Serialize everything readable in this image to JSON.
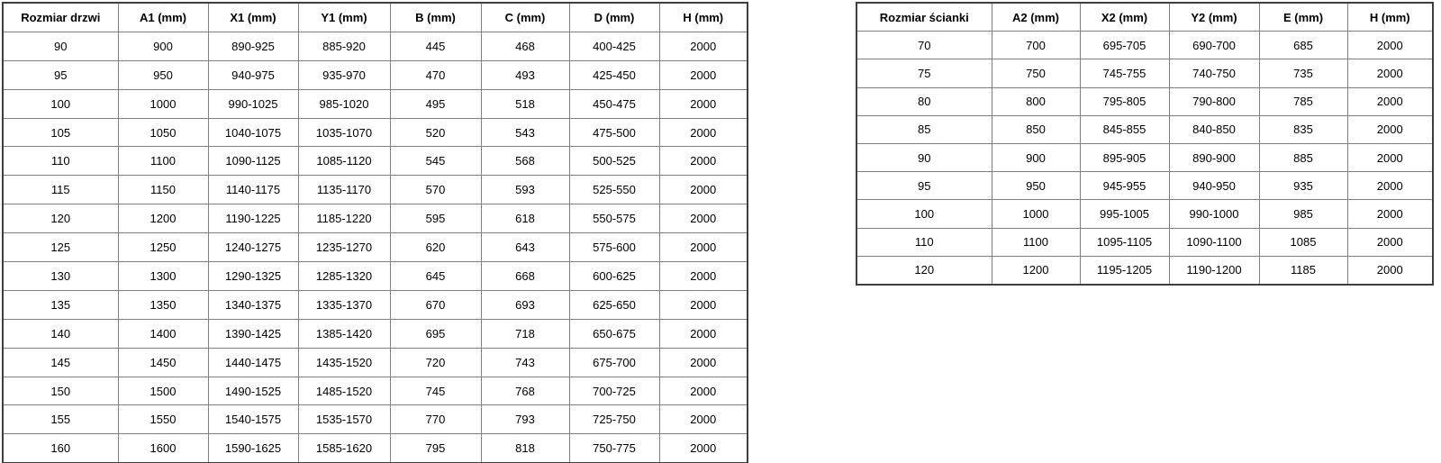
{
  "page": {
    "background_color": "#ffffff",
    "text_color": "#000000",
    "outer_border_color": "#3f3f3f",
    "inner_border_color": "#7f7f7f"
  },
  "tables": [
    {
      "id": "doors",
      "semantic": "door-sizes-table",
      "headers": [
        "Rozmiar drzwi",
        "A1 (mm)",
        "X1 (mm)",
        "Y1 (mm)",
        "B (mm)",
        "C (mm)",
        "D (mm)",
        "H (mm)"
      ],
      "rows": [
        [
          "90",
          "900",
          "890-925",
          "885-920",
          "445",
          "468",
          "400-425",
          "2000"
        ],
        [
          "95",
          "950",
          "940-975",
          "935-970",
          "470",
          "493",
          "425-450",
          "2000"
        ],
        [
          "100",
          "1000",
          "990-1025",
          "985-1020",
          "495",
          "518",
          "450-475",
          "2000"
        ],
        [
          "105",
          "1050",
          "1040-1075",
          "1035-1070",
          "520",
          "543",
          "475-500",
          "2000"
        ],
        [
          "110",
          "1100",
          "1090-1125",
          "1085-1120",
          "545",
          "568",
          "500-525",
          "2000"
        ],
        [
          "115",
          "1150",
          "1140-1175",
          "1135-1170",
          "570",
          "593",
          "525-550",
          "2000"
        ],
        [
          "120",
          "1200",
          "1190-1225",
          "1185-1220",
          "595",
          "618",
          "550-575",
          "2000"
        ],
        [
          "125",
          "1250",
          "1240-1275",
          "1235-1270",
          "620",
          "643",
          "575-600",
          "2000"
        ],
        [
          "130",
          "1300",
          "1290-1325",
          "1285-1320",
          "645",
          "668",
          "600-625",
          "2000"
        ],
        [
          "135",
          "1350",
          "1340-1375",
          "1335-1370",
          "670",
          "693",
          "625-650",
          "2000"
        ],
        [
          "140",
          "1400",
          "1390-1425",
          "1385-1420",
          "695",
          "718",
          "650-675",
          "2000"
        ],
        [
          "145",
          "1450",
          "1440-1475",
          "1435-1520",
          "720",
          "743",
          "675-700",
          "2000"
        ],
        [
          "150",
          "1500",
          "1490-1525",
          "1485-1520",
          "745",
          "768",
          "700-725",
          "2000"
        ],
        [
          "155",
          "1550",
          "1540-1575",
          "1535-1570",
          "770",
          "793",
          "725-750",
          "2000"
        ],
        [
          "160",
          "1600",
          "1590-1625",
          "1585-1620",
          "795",
          "818",
          "750-775",
          "2000"
        ]
      ]
    },
    {
      "id": "walls",
      "semantic": "wall-sizes-table",
      "headers": [
        "Rozmiar ścianki",
        "A2 (mm)",
        "X2 (mm)",
        "Y2 (mm)",
        "E (mm)",
        "H (mm)"
      ],
      "rows": [
        [
          "70",
          "700",
          "695-705",
          "690-700",
          "685",
          "2000"
        ],
        [
          "75",
          "750",
          "745-755",
          "740-750",
          "735",
          "2000"
        ],
        [
          "80",
          "800",
          "795-805",
          "790-800",
          "785",
          "2000"
        ],
        [
          "85",
          "850",
          "845-855",
          "840-850",
          "835",
          "2000"
        ],
        [
          "90",
          "900",
          "895-905",
          "890-900",
          "885",
          "2000"
        ],
        [
          "95",
          "950",
          "945-955",
          "940-950",
          "935",
          "2000"
        ],
        [
          "100",
          "1000",
          "995-1005",
          "990-1000",
          "985",
          "2000"
        ],
        [
          "110",
          "1100",
          "1095-1105",
          "1090-1100",
          "1085",
          "2000"
        ],
        [
          "120",
          "1200",
          "1195-1205",
          "1190-1200",
          "1185",
          "2000"
        ]
      ]
    }
  ]
}
